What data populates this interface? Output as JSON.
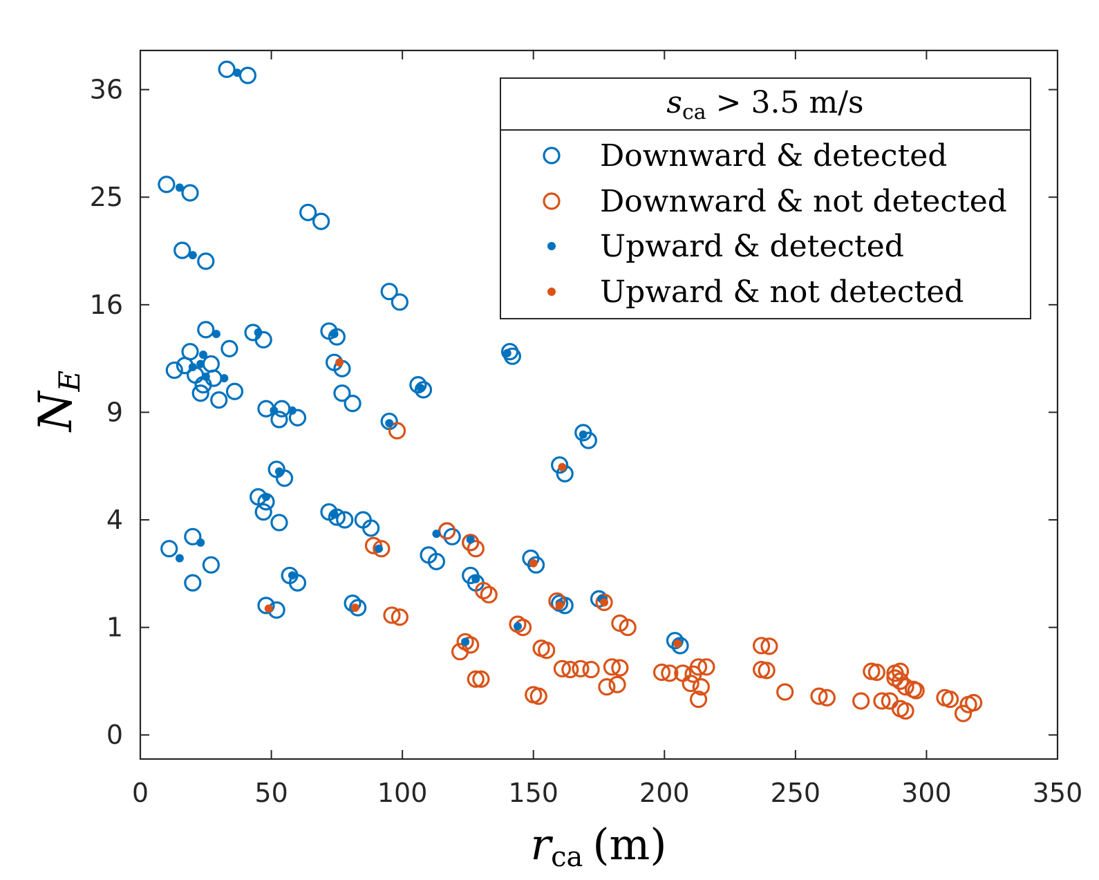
{
  "chart_data": {
    "type": "scatter",
    "xlabel": {
      "main": "r",
      "sub": "ca",
      "unit": "(m)"
    },
    "ylabel": {
      "main": "N",
      "sub": "E"
    },
    "xlim": [
      0,
      350
    ],
    "ylim": [
      -0.05,
      40.5
    ],
    "x_ticks": [
      0,
      50,
      100,
      150,
      200,
      250,
      300,
      350
    ],
    "y_ticks": [
      0,
      1,
      4,
      9,
      16,
      25,
      36
    ],
    "y_scale": "sqrt",
    "grid": false,
    "legend_position": "top-right",
    "legend_title": {
      "main": "s",
      "sub": "ca",
      "rest": " > 3.5 m/s"
    },
    "colors": {
      "blue": "#0072BD",
      "orange": "#D95319"
    },
    "series": [
      {
        "name": "Downward & detected",
        "marker": "open-circle",
        "color": "#0072BD",
        "points": [
          [
            33,
            38.3
          ],
          [
            41,
            37.6
          ],
          [
            10,
            26.2
          ],
          [
            19,
            25.4
          ],
          [
            16,
            20.3
          ],
          [
            25,
            19.4
          ],
          [
            64,
            23.6
          ],
          [
            69,
            22.8
          ],
          [
            95,
            17.0
          ],
          [
            99,
            16.2
          ],
          [
            25,
            14.2
          ],
          [
            43,
            14.0
          ],
          [
            47,
            13.5
          ],
          [
            34,
            12.9
          ],
          [
            19,
            12.7
          ],
          [
            13,
            11.5
          ],
          [
            17,
            11.8
          ],
          [
            21,
            11.2
          ],
          [
            27,
            11.9
          ],
          [
            24,
            10.6
          ],
          [
            28,
            11.0
          ],
          [
            30,
            9.7
          ],
          [
            36,
            10.2
          ],
          [
            23,
            10.1
          ],
          [
            48,
            9.2
          ],
          [
            54,
            9.2
          ],
          [
            53,
            8.6
          ],
          [
            60,
            8.7
          ],
          [
            72,
            14.1
          ],
          [
            75,
            13.7
          ],
          [
            74,
            12.0
          ],
          [
            77,
            11.6
          ],
          [
            77,
            10.1
          ],
          [
            81,
            9.5
          ],
          [
            95,
            8.5
          ],
          [
            141,
            12.7
          ],
          [
            142,
            12.4
          ],
          [
            106,
            10.6
          ],
          [
            108,
            10.3
          ],
          [
            169,
            7.9
          ],
          [
            171,
            7.5
          ],
          [
            160,
            6.3
          ],
          [
            162,
            5.9
          ],
          [
            52,
            6.1
          ],
          [
            55,
            5.7
          ],
          [
            45,
            4.9
          ],
          [
            48,
            4.7
          ],
          [
            47,
            4.3
          ],
          [
            53,
            3.9
          ],
          [
            72,
            4.3
          ],
          [
            75,
            4.1
          ],
          [
            78,
            4.0
          ],
          [
            85,
            4.0
          ],
          [
            88,
            3.7
          ],
          [
            20,
            3.4
          ],
          [
            11,
            3.0
          ],
          [
            27,
            2.5
          ],
          [
            20,
            2.0
          ],
          [
            57,
            2.2
          ],
          [
            60,
            2.0
          ],
          [
            48,
            1.45
          ],
          [
            52,
            1.35
          ],
          [
            81,
            1.5
          ],
          [
            83,
            1.4
          ],
          [
            110,
            2.8
          ],
          [
            113,
            2.6
          ],
          [
            117,
            3.6
          ],
          [
            119,
            3.4
          ],
          [
            126,
            3.2
          ],
          [
            126,
            2.2
          ],
          [
            128,
            2.0
          ],
          [
            149,
            2.7
          ],
          [
            151,
            2.5
          ],
          [
            160,
            1.5
          ],
          [
            162,
            1.45
          ],
          [
            175,
            1.6
          ],
          [
            204,
            0.77
          ],
          [
            206,
            0.69
          ]
        ]
      },
      {
        "name": "Downward & not detected",
        "marker": "open-circle",
        "color": "#D95319",
        "points": [
          [
            98,
            8.0
          ],
          [
            117,
            3.6
          ],
          [
            126,
            3.2
          ],
          [
            128,
            3.0
          ],
          [
            89,
            3.1
          ],
          [
            92,
            3.0
          ],
          [
            131,
            1.8
          ],
          [
            133,
            1.7
          ],
          [
            96,
            1.24
          ],
          [
            99,
            1.2
          ],
          [
            122,
            0.6
          ],
          [
            124,
            0.75
          ],
          [
            126,
            0.7
          ],
          [
            144,
            1.06
          ],
          [
            146,
            1.0
          ],
          [
            153,
            0.65
          ],
          [
            155,
            0.62
          ],
          [
            159,
            1.55
          ],
          [
            177,
            1.52
          ],
          [
            183,
            1.08
          ],
          [
            186,
            1.0
          ],
          [
            237,
            0.69
          ],
          [
            240,
            0.68
          ],
          [
            161,
            0.38
          ],
          [
            164,
            0.37
          ],
          [
            168,
            0.38
          ],
          [
            172,
            0.37
          ],
          [
            180,
            0.4
          ],
          [
            183,
            0.39
          ],
          [
            178,
            0.2
          ],
          [
            182,
            0.22
          ],
          [
            199,
            0.34
          ],
          [
            202,
            0.33
          ],
          [
            207,
            0.33
          ],
          [
            211,
            0.32
          ],
          [
            213,
            0.4
          ],
          [
            216,
            0.4
          ],
          [
            210,
            0.23
          ],
          [
            214,
            0.2
          ],
          [
            213,
            0.11
          ],
          [
            237,
            0.37
          ],
          [
            239,
            0.36
          ],
          [
            128,
            0.27
          ],
          [
            130,
            0.27
          ],
          [
            150,
            0.14
          ],
          [
            152,
            0.13
          ],
          [
            246,
            0.16
          ],
          [
            259,
            0.13
          ],
          [
            262,
            0.12
          ],
          [
            275,
            0.1
          ],
          [
            283,
            0.1
          ],
          [
            286,
            0.1
          ],
          [
            279,
            0.35
          ],
          [
            281,
            0.34
          ],
          [
            288,
            0.33
          ],
          [
            290,
            0.35
          ],
          [
            288,
            0.28
          ],
          [
            290,
            0.25
          ],
          [
            292,
            0.2
          ],
          [
            295,
            0.18
          ],
          [
            296,
            0.17
          ],
          [
            290,
            0.06
          ],
          [
            292,
            0.05
          ],
          [
            307,
            0.12
          ],
          [
            309,
            0.11
          ],
          [
            314,
            0.04
          ],
          [
            316,
            0.08
          ],
          [
            318,
            0.09
          ]
        ]
      },
      {
        "name": "Upward & detected",
        "marker": "dot",
        "color": "#0072BD",
        "points": [
          [
            37,
            37.9
          ],
          [
            15,
            25.9
          ],
          [
            20,
            19.9
          ],
          [
            24,
            12.5
          ],
          [
            29,
            13.9
          ],
          [
            45,
            14.0
          ],
          [
            32,
            11.0
          ],
          [
            23,
            11.9
          ],
          [
            25,
            11.1
          ],
          [
            20,
            11.7
          ],
          [
            51,
            9.1
          ],
          [
            58,
            9.1
          ],
          [
            74,
            13.9
          ],
          [
            95,
            8.4
          ],
          [
            107,
            10.4
          ],
          [
            140,
            12.6
          ],
          [
            169,
            7.8
          ],
          [
            53,
            6.0
          ],
          [
            48,
            4.9
          ],
          [
            74,
            4.2
          ],
          [
            15,
            2.7
          ],
          [
            23,
            3.2
          ],
          [
            58,
            2.2
          ],
          [
            113,
            3.5
          ],
          [
            126,
            3.3
          ],
          [
            91,
            3.0
          ],
          [
            124,
            0.75
          ],
          [
            144,
            1.02
          ],
          [
            128,
            2.1
          ],
          [
            160,
            1.5
          ],
          [
            176,
            1.6
          ],
          [
            205,
            0.75
          ]
        ]
      },
      {
        "name": "Upward & not detected",
        "marker": "dot",
        "color": "#D95319",
        "points": [
          [
            76,
            12.0
          ],
          [
            161,
            6.2
          ],
          [
            49,
            1.38
          ],
          [
            82,
            1.4
          ],
          [
            150,
            2.55
          ],
          [
            160,
            1.45
          ],
          [
            177,
            1.52
          ],
          [
            205,
            0.72
          ]
        ]
      }
    ]
  }
}
